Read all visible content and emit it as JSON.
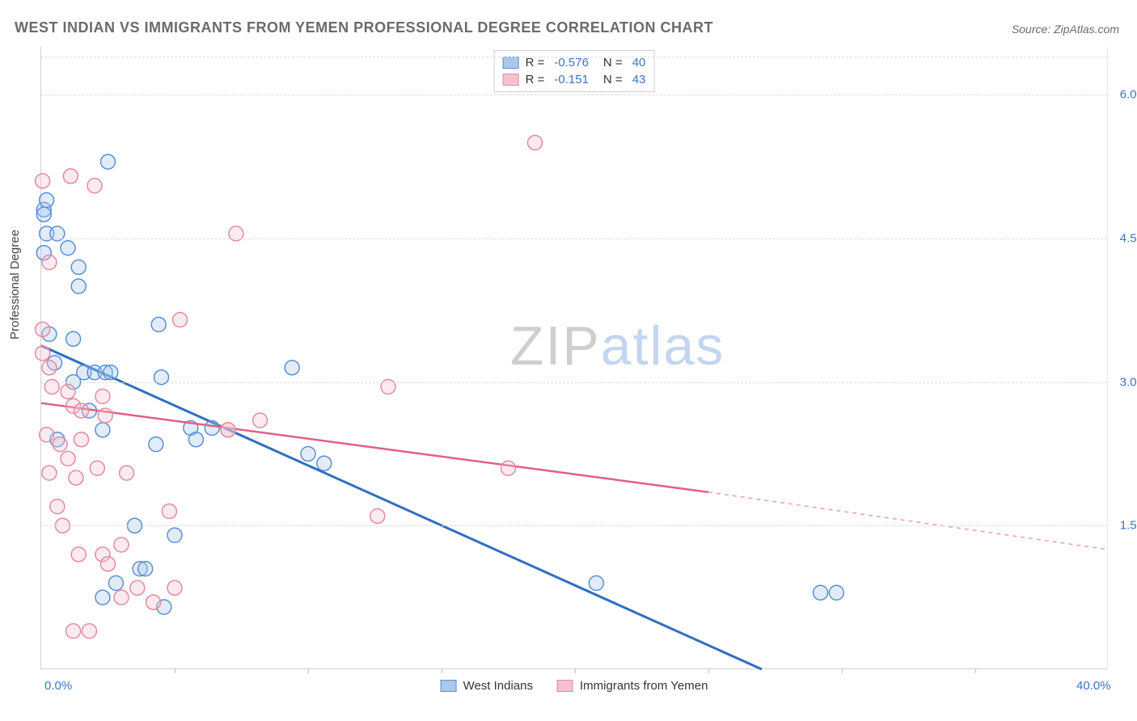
{
  "title": "WEST INDIAN VS IMMIGRANTS FROM YEMEN PROFESSIONAL DEGREE CORRELATION CHART",
  "source": "Source: ZipAtlas.com",
  "ylabel": "Professional Degree",
  "watermark_zip": "ZIP",
  "watermark_atlas": "atlas",
  "chart": {
    "type": "scatter",
    "xlim": [
      0,
      40
    ],
    "ylim": [
      0,
      6.5
    ],
    "x_ticks": [
      0,
      40
    ],
    "x_tick_labels": [
      "0.0%",
      "40.0%"
    ],
    "x_minor_ticks": [
      5,
      10,
      15,
      20,
      25,
      30,
      35
    ],
    "y_gridlines": [
      1.5,
      3.0,
      4.5,
      6.0,
      6.4
    ],
    "y_tick_labels": {
      "1.5": "1.5%",
      "3.0": "3.0%",
      "4.5": "4.5%",
      "6.0": "6.0%"
    },
    "background_color": "#ffffff",
    "grid_color": "#dcdcdc",
    "axis_color": "#d0d0d0",
    "tick_label_color": "#3b74c4",
    "marker_radius": 9,
    "marker_stroke_width": 1.5,
    "marker_fill_opacity": 0.35,
    "series": [
      {
        "name": "West Indians",
        "color_stroke": "#5b8fd4",
        "color_fill": "#a9c8ea",
        "line_color": "#2f6fc1",
        "line_width": 3,
        "R": "-0.576",
        "N": "40",
        "trend": {
          "x1": 0,
          "y1": 3.38,
          "x2": 27,
          "y2": 0.0
        },
        "points": [
          [
            0.1,
            4.8
          ],
          [
            0.1,
            4.75
          ],
          [
            0.2,
            4.9
          ],
          [
            0.2,
            4.55
          ],
          [
            0.1,
            4.35
          ],
          [
            0.6,
            4.55
          ],
          [
            1.0,
            4.4
          ],
          [
            1.4,
            4.2
          ],
          [
            1.4,
            4.0
          ],
          [
            2.5,
            5.3
          ],
          [
            0.3,
            3.5
          ],
          [
            1.2,
            3.45
          ],
          [
            1.6,
            3.1
          ],
          [
            2.0,
            3.1
          ],
          [
            2.4,
            3.1
          ],
          [
            2.6,
            3.1
          ],
          [
            4.4,
            3.6
          ],
          [
            1.8,
            2.7
          ],
          [
            2.3,
            2.5
          ],
          [
            4.5,
            3.05
          ],
          [
            5.6,
            2.52
          ],
          [
            6.4,
            2.52
          ],
          [
            5.8,
            2.4
          ],
          [
            10.0,
            2.25
          ],
          [
            10.6,
            2.15
          ],
          [
            4.3,
            2.35
          ],
          [
            3.7,
            1.05
          ],
          [
            3.9,
            1.05
          ],
          [
            2.8,
            0.9
          ],
          [
            2.3,
            0.75
          ],
          [
            4.6,
            0.65
          ],
          [
            29.2,
            0.8
          ],
          [
            29.8,
            0.8
          ],
          [
            20.8,
            0.9
          ],
          [
            1.2,
            3.0
          ],
          [
            0.5,
            3.2
          ],
          [
            0.6,
            2.4
          ],
          [
            3.5,
            1.5
          ],
          [
            5.0,
            1.4
          ],
          [
            9.4,
            3.15
          ]
        ]
      },
      {
        "name": "Immigrants from Yemen",
        "color_stroke": "#e48aa3",
        "color_fill": "#f3c2d0",
        "line_color": "#e25f85",
        "line_width": 2.5,
        "R": "-0.151",
        "N": "43",
        "trend": {
          "x1": 0,
          "y1": 2.78,
          "x2": 25,
          "y2": 1.85,
          "dash_from_x": 25,
          "dash_x2": 40,
          "dash_y2": 1.25
        },
        "points": [
          [
            0.05,
            5.1
          ],
          [
            0.05,
            3.55
          ],
          [
            0.05,
            3.3
          ],
          [
            0.3,
            3.15
          ],
          [
            0.3,
            4.25
          ],
          [
            1.1,
            5.15
          ],
          [
            2.0,
            5.05
          ],
          [
            7.3,
            4.55
          ],
          [
            5.2,
            3.65
          ],
          [
            13.0,
            2.95
          ],
          [
            0.4,
            2.95
          ],
          [
            1.0,
            2.9
          ],
          [
            1.2,
            2.75
          ],
          [
            1.5,
            2.7
          ],
          [
            2.4,
            2.65
          ],
          [
            2.3,
            2.85
          ],
          [
            0.2,
            2.45
          ],
          [
            0.7,
            2.35
          ],
          [
            1.5,
            2.4
          ],
          [
            1.0,
            2.2
          ],
          [
            0.3,
            2.05
          ],
          [
            1.3,
            2.0
          ],
          [
            2.1,
            2.1
          ],
          [
            3.2,
            2.05
          ],
          [
            4.8,
            1.65
          ],
          [
            1.4,
            1.2
          ],
          [
            2.3,
            1.2
          ],
          [
            2.5,
            1.1
          ],
          [
            3.6,
            0.85
          ],
          [
            5.0,
            0.85
          ],
          [
            7.0,
            2.5
          ],
          [
            7.0,
            2.5
          ],
          [
            8.2,
            2.6
          ],
          [
            12.6,
            1.6
          ],
          [
            17.5,
            2.1
          ],
          [
            0.6,
            1.7
          ],
          [
            0.8,
            1.5
          ],
          [
            1.2,
            0.4
          ],
          [
            1.8,
            0.4
          ],
          [
            3.0,
            0.75
          ],
          [
            4.2,
            0.7
          ],
          [
            18.5,
            5.5
          ],
          [
            3.0,
            1.3
          ]
        ]
      }
    ]
  },
  "legend_top": {
    "R_label": "R =",
    "N_label": "N ="
  },
  "legend_bottom": [
    {
      "label": "West Indians",
      "stroke": "#5b8fd4",
      "fill": "#a9c8ea"
    },
    {
      "label": "Immigrants from Yemen",
      "stroke": "#e48aa3",
      "fill": "#f3c2d0"
    }
  ]
}
